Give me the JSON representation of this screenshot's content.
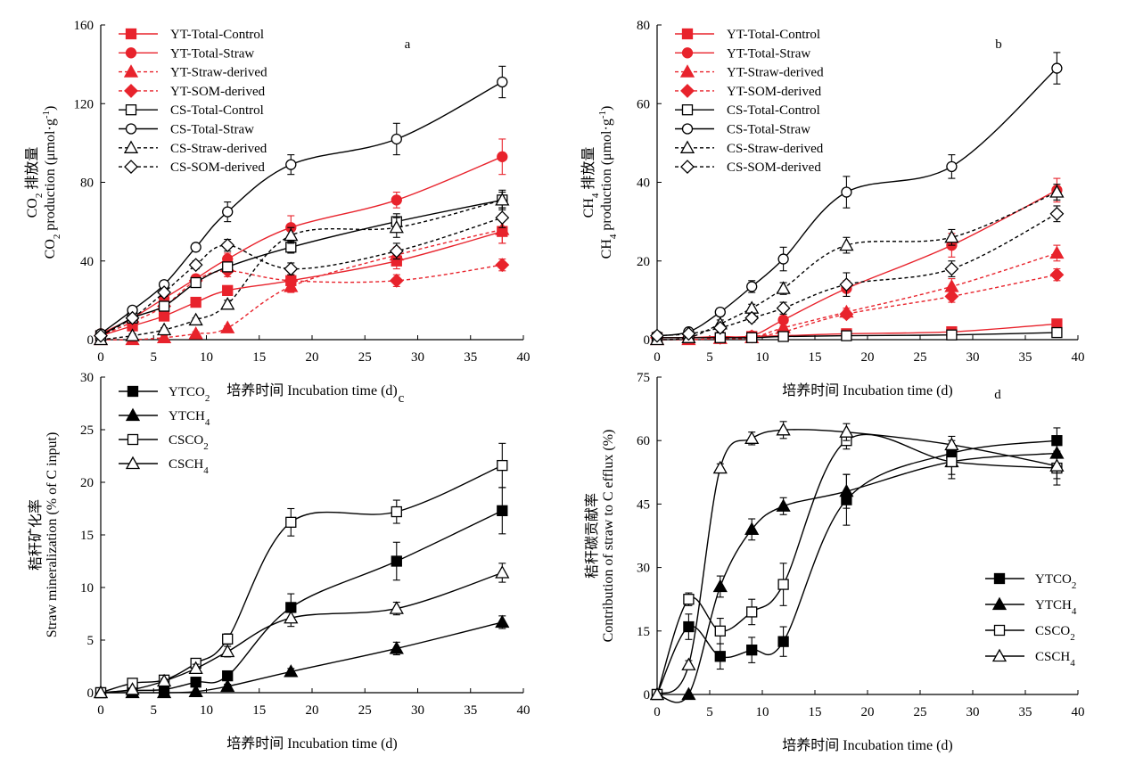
{
  "figure": {
    "xlabel": "培养时间 Incubation time (d)"
  },
  "chart_data": [
    {
      "panel": "a",
      "type": "line",
      "ylabel_cn": "排放量",
      "ylabel_en": "production (μmol·g",
      "ylabel_prefix": "CO",
      "ylabel_sub": "2",
      "ylabel_sup": "-1",
      "ylim": [
        0,
        160
      ],
      "yticks": [
        "0",
        "40",
        "80",
        "120",
        "160"
      ],
      "xlim": [
        0,
        40
      ],
      "xticks": [
        "0",
        "5",
        "10",
        "15",
        "20",
        "25",
        "30",
        "35",
        "40"
      ],
      "legend_position": "top-left",
      "series": [
        {
          "name": "YT-Total-Control",
          "color": "#e8232c",
          "marker": "square",
          "filled": true,
          "dashed": false,
          "x": [
            0,
            3,
            6,
            9,
            12,
            18,
            28,
            38
          ],
          "y": [
            2,
            7,
            12,
            19,
            25,
            30,
            40,
            55
          ],
          "err": [
            0,
            1,
            1,
            2,
            2,
            3,
            4,
            6
          ]
        },
        {
          "name": "YT-Total-Straw",
          "color": "#e8232c",
          "marker": "circle",
          "filled": true,
          "dashed": false,
          "x": [
            0,
            3,
            6,
            9,
            12,
            18,
            28,
            38
          ],
          "y": [
            3,
            11,
            21,
            31,
            41,
            57,
            71,
            93
          ],
          "err": [
            0,
            1,
            2,
            2,
            3,
            6,
            4,
            9
          ]
        },
        {
          "name": "YT-Straw-derived",
          "color": "#e8232c",
          "marker": "triangle",
          "filled": true,
          "dashed": true,
          "x": [
            0,
            3,
            6,
            9,
            12,
            18,
            28,
            38
          ],
          "y": [
            0,
            0,
            1,
            3,
            6,
            27,
            43,
            56
          ],
          "err": [
            0,
            0,
            1,
            1,
            1,
            3,
            4,
            7
          ]
        },
        {
          "name": "YT-SOM-derived",
          "color": "#e8232c",
          "marker": "diamond",
          "filled": true,
          "dashed": true,
          "x": [
            0,
            3,
            6,
            9,
            12,
            18,
            28,
            38
          ],
          "y": [
            2,
            9,
            17,
            30,
            35,
            30,
            30,
            38
          ],
          "err": [
            0,
            1,
            2,
            2,
            3,
            3,
            3,
            3
          ]
        },
        {
          "name": "CS-Total-Control",
          "color": "#000000",
          "marker": "square",
          "filled": false,
          "dashed": false,
          "x": [
            0,
            3,
            6,
            9,
            12,
            18,
            28,
            38
          ],
          "y": [
            2,
            11,
            17,
            29,
            37,
            47,
            60,
            71
          ],
          "err": [
            0,
            1,
            1,
            2,
            2,
            3,
            4,
            4
          ]
        },
        {
          "name": "CS-Total-Straw",
          "color": "#000000",
          "marker": "circle",
          "filled": false,
          "dashed": false,
          "x": [
            0,
            3,
            6,
            9,
            12,
            18,
            28,
            38
          ],
          "y": [
            3,
            15,
            28,
            47,
            65,
            89,
            102,
            131
          ],
          "err": [
            0,
            1,
            2,
            2,
            5,
            5,
            8,
            8
          ]
        },
        {
          "name": "CS-Straw-derived",
          "color": "#000000",
          "marker": "triangle",
          "filled": false,
          "dashed": true,
          "x": [
            0,
            3,
            6,
            9,
            12,
            18,
            28,
            38
          ],
          "y": [
            0,
            2,
            5,
            10,
            18,
            53,
            57,
            71
          ],
          "err": [
            0,
            1,
            1,
            1,
            2,
            4,
            5,
            5
          ]
        },
        {
          "name": "CS-SOM-derived",
          "color": "#000000",
          "marker": "diamond",
          "filled": false,
          "dashed": true,
          "x": [
            0,
            3,
            6,
            9,
            12,
            18,
            28,
            38
          ],
          "y": [
            2,
            11,
            24,
            38,
            48,
            36,
            45,
            62
          ],
          "err": [
            0,
            1,
            2,
            2,
            3,
            3,
            4,
            5
          ]
        }
      ]
    },
    {
      "panel": "b",
      "type": "line",
      "ylabel_cn": "排放量",
      "ylabel_en": "production (μmol·g",
      "ylabel_prefix": "CH",
      "ylabel_sub": "4",
      "ylabel_sup": "-1",
      "ylim": [
        0,
        80
      ],
      "yticks": [
        "0",
        "20",
        "40",
        "60",
        "80"
      ],
      "xlim": [
        0,
        40
      ],
      "xticks": [
        "0",
        "5",
        "10",
        "15",
        "20",
        "25",
        "30",
        "35",
        "40"
      ],
      "legend_position": "top-left",
      "series": [
        {
          "name": "YT-Total-Control",
          "color": "#e8232c",
          "marker": "square",
          "filled": true,
          "dashed": false,
          "x": [
            0,
            3,
            6,
            9,
            12,
            18,
            28,
            38
          ],
          "y": [
            0.5,
            0.5,
            0.5,
            0.8,
            1,
            1.5,
            2,
            4
          ],
          "err": [
            0,
            0,
            0,
            0,
            0,
            0.3,
            0.3,
            0.5
          ]
        },
        {
          "name": "YT-Total-Straw",
          "color": "#e8232c",
          "marker": "circle",
          "filled": true,
          "dashed": false,
          "x": [
            0,
            3,
            6,
            9,
            12,
            18,
            28,
            38
          ],
          "y": [
            0.5,
            0.5,
            0.8,
            1,
            5,
            13,
            24,
            38
          ],
          "err": [
            0,
            0,
            0,
            0.3,
            1,
            2,
            3,
            3
          ]
        },
        {
          "name": "YT-Straw-derived",
          "color": "#e8232c",
          "marker": "triangle",
          "filled": true,
          "dashed": true,
          "x": [
            0,
            3,
            6,
            9,
            12,
            18,
            28,
            38
          ],
          "y": [
            0,
            0,
            0.3,
            0.5,
            3,
            7,
            13.5,
            22
          ],
          "err": [
            0,
            0,
            0,
            0,
            0.5,
            1,
            2,
            2
          ]
        },
        {
          "name": "YT-SOM-derived",
          "color": "#e8232c",
          "marker": "diamond",
          "filled": true,
          "dashed": true,
          "x": [
            0,
            3,
            6,
            9,
            12,
            18,
            28,
            38
          ],
          "y": [
            0.5,
            0.5,
            0.5,
            0.8,
            2,
            6.5,
            11,
            16.5
          ],
          "err": [
            0,
            0,
            0,
            0,
            0.5,
            1,
            1.5,
            1.5
          ]
        },
        {
          "name": "CS-Total-Control",
          "color": "#000000",
          "marker": "square",
          "filled": false,
          "dashed": false,
          "x": [
            0,
            3,
            6,
            9,
            12,
            18,
            28,
            38
          ],
          "y": [
            0.5,
            0.5,
            0.5,
            0.5,
            0.8,
            1,
            1.2,
            1.8
          ],
          "err": [
            0,
            0,
            0,
            0,
            0,
            0,
            0,
            0
          ]
        },
        {
          "name": "CS-Total-Straw",
          "color": "#000000",
          "marker": "circle",
          "filled": false,
          "dashed": false,
          "x": [
            0,
            3,
            6,
            9,
            12,
            18,
            28,
            38
          ],
          "y": [
            1,
            2,
            7,
            13.5,
            20.5,
            37.5,
            44,
            69
          ],
          "err": [
            0,
            0.5,
            1,
            1.5,
            3,
            4,
            3,
            4
          ]
        },
        {
          "name": "CS-Straw-derived",
          "color": "#000000",
          "marker": "triangle",
          "filled": false,
          "dashed": true,
          "x": [
            0,
            3,
            6,
            9,
            12,
            18,
            28,
            38
          ],
          "y": [
            0,
            0.5,
            4,
            8,
            13,
            24,
            26,
            37.5
          ],
          "err": [
            0,
            0,
            1,
            1,
            1.5,
            2,
            2,
            2
          ]
        },
        {
          "name": "CS-SOM-derived",
          "color": "#000000",
          "marker": "diamond",
          "filled": false,
          "dashed": true,
          "x": [
            0,
            3,
            6,
            9,
            12,
            18,
            28,
            38
          ],
          "y": [
            1,
            1.5,
            3,
            5.5,
            8,
            14,
            18,
            32
          ],
          "err": [
            0,
            0.5,
            1,
            1,
            1.5,
            3,
            2,
            2
          ]
        }
      ]
    },
    {
      "panel": "c",
      "type": "line",
      "ylabel_cn": "秸秆矿化率",
      "ylabel_en": "Straw mineralization (% of C input)",
      "ylim": [
        0,
        30
      ],
      "yticks": [
        "0",
        "5",
        "10",
        "15",
        "20",
        "25",
        "30"
      ],
      "xlim": [
        0,
        40
      ],
      "xticks": [
        "0",
        "5",
        "10",
        "15",
        "20",
        "25",
        "30",
        "35",
        "40"
      ],
      "legend_position": "top-left",
      "series": [
        {
          "name": "YTCO",
          "sub": "2",
          "color": "#000000",
          "marker": "square",
          "filled": true,
          "dashed": false,
          "x": [
            0,
            3,
            6,
            9,
            12,
            18,
            28,
            38
          ],
          "y": [
            0,
            0.2,
            0.3,
            1,
            1.6,
            8.1,
            12.5,
            17.3
          ],
          "err": [
            0,
            0,
            0,
            0.3,
            0.3,
            1.3,
            1.8,
            2.2
          ]
        },
        {
          "name": "YTCH",
          "sub": "4",
          "color": "#000000",
          "marker": "triangle",
          "filled": true,
          "dashed": false,
          "x": [
            0,
            3,
            6,
            9,
            12,
            18,
            28,
            38
          ],
          "y": [
            0,
            0,
            0,
            0.1,
            0.6,
            2,
            4.2,
            6.7
          ],
          "err": [
            0,
            0,
            0,
            0,
            0.2,
            0.3,
            0.6,
            0.6
          ]
        },
        {
          "name": "CSCO",
          "sub": "2",
          "color": "#000000",
          "marker": "square",
          "filled": false,
          "dashed": false,
          "x": [
            0,
            3,
            6,
            9,
            12,
            18,
            28,
            38
          ],
          "y": [
            0,
            0.9,
            1.2,
            2.8,
            5.1,
            16.2,
            17.2,
            21.6
          ],
          "err": [
            0,
            0.2,
            0.2,
            0.4,
            0.5,
            1.3,
            1.1,
            2.1
          ]
        },
        {
          "name": "CSCH",
          "sub": "4",
          "color": "#000000",
          "marker": "triangle",
          "filled": false,
          "dashed": false,
          "x": [
            0,
            3,
            6,
            9,
            12,
            18,
            28,
            38
          ],
          "y": [
            0,
            0.3,
            1.1,
            2.3,
            3.9,
            7.1,
            8,
            11.4
          ],
          "err": [
            0,
            0.1,
            0.2,
            0.4,
            0.5,
            0.8,
            0.6,
            0.9
          ]
        }
      ]
    },
    {
      "panel": "d",
      "type": "line",
      "ylabel_cn": "秸秆碳贡献率",
      "ylabel_en": "Contribution of straw to C efflux (%)",
      "ylim": [
        0,
        75
      ],
      "yticks": [
        "0",
        "15",
        "30",
        "45",
        "60",
        "75"
      ],
      "xlim": [
        0,
        40
      ],
      "xticks": [
        "0",
        "5",
        "10",
        "15",
        "20",
        "25",
        "30",
        "35",
        "40"
      ],
      "legend_position": "bottom-right",
      "series": [
        {
          "name": "YTCO",
          "sub": "2",
          "color": "#000000",
          "marker": "square",
          "filled": true,
          "dashed": false,
          "x": [
            0,
            3,
            6,
            9,
            12,
            18,
            28,
            38
          ],
          "y": [
            0,
            16,
            9,
            10.5,
            12.5,
            46,
            57,
            60
          ],
          "err": [
            0,
            3,
            3,
            3,
            3.5,
            6,
            3,
            3
          ]
        },
        {
          "name": "YTCH",
          "sub": "4",
          "color": "#000000",
          "marker": "triangle",
          "filled": true,
          "dashed": false,
          "x": [
            0,
            3,
            6,
            9,
            12,
            18,
            28,
            38
          ],
          "y": [
            0,
            0,
            25.5,
            39,
            44.5,
            48,
            55,
            57
          ],
          "err": [
            0,
            0,
            2.5,
            2.5,
            2,
            4,
            3,
            3
          ]
        },
        {
          "name": "CSCO",
          "sub": "2",
          "color": "#000000",
          "marker": "square",
          "filled": false,
          "dashed": false,
          "x": [
            0,
            3,
            6,
            9,
            12,
            18,
            28,
            38
          ],
          "y": [
            0,
            22.5,
            15,
            19.5,
            26,
            60,
            55,
            53.5
          ],
          "err": [
            0,
            1.5,
            3,
            3,
            5,
            2,
            4,
            4
          ]
        },
        {
          "name": "CSCH",
          "sub": "4",
          "color": "#000000",
          "marker": "triangle",
          "filled": false,
          "dashed": false,
          "x": [
            0,
            3,
            6,
            9,
            12,
            18,
            28,
            38
          ],
          "y": [
            0,
            7,
            53.5,
            60.5,
            62.5,
            62,
            59,
            54
          ],
          "err": [
            0,
            1,
            1,
            1.5,
            2,
            2,
            2,
            3
          ]
        }
      ]
    }
  ]
}
